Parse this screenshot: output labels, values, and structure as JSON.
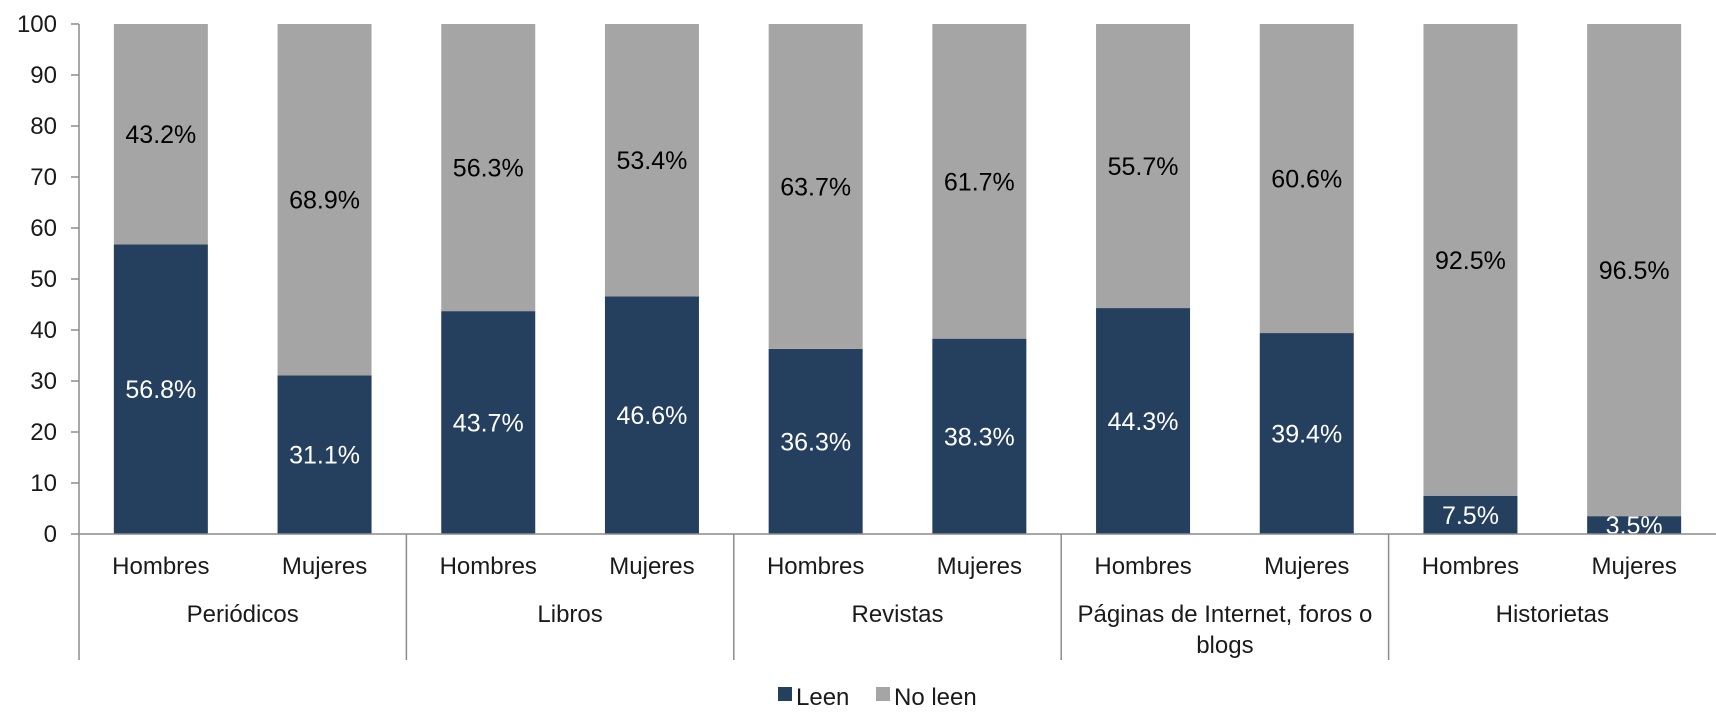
{
  "chart_data": {
    "type": "bar",
    "stacked": true,
    "ylim": [
      0,
      100
    ],
    "yticks": [
      0,
      10,
      20,
      30,
      40,
      50,
      60,
      70,
      80,
      90,
      100
    ],
    "groups": [
      {
        "name": "Periódicos",
        "lines": [
          "Periódicos"
        ]
      },
      {
        "name": "Libros",
        "lines": [
          "Libros"
        ]
      },
      {
        "name": "Revistas",
        "lines": [
          "Revistas"
        ]
      },
      {
        "name": "Páginas de Internet, foros o blogs",
        "lines": [
          "Páginas de Internet, foros o",
          "blogs"
        ]
      },
      {
        "name": "Historietas",
        "lines": [
          "Historietas"
        ]
      }
    ],
    "categories": [
      "Hombres",
      "Mujeres",
      "Hombres",
      "Mujeres",
      "Hombres",
      "Mujeres",
      "Hombres",
      "Mujeres",
      "Hombres",
      "Mujeres"
    ],
    "series": [
      {
        "name": "Leen",
        "color": "#253f5f",
        "label_color": "#ffffff",
        "values": [
          56.8,
          31.1,
          43.7,
          46.6,
          36.3,
          38.3,
          44.3,
          39.4,
          7.5,
          3.5
        ],
        "labels": [
          "56.8%",
          "31.1%",
          "43.7%",
          "46.6%",
          "36.3%",
          "38.3%",
          "44.3%",
          "39.4%",
          "7.5%",
          "3.5%"
        ]
      },
      {
        "name": "No leen",
        "color": "#a5a5a5",
        "label_color": "#000000",
        "values": [
          43.2,
          68.9,
          56.3,
          53.4,
          63.7,
          61.7,
          55.7,
          60.6,
          92.5,
          96.5
        ],
        "labels": [
          "43.2%",
          "68.9%",
          "56.3%",
          "53.4%",
          "63.7%",
          "61.7%",
          "55.7%",
          "60.6%",
          "92.5%",
          "96.5%"
        ]
      }
    ],
    "legend_position": "bottom",
    "grid": false
  }
}
